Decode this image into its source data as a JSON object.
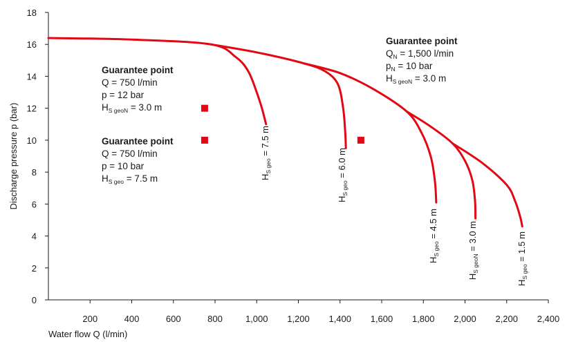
{
  "chart_data": {
    "type": "line",
    "xlabel": "Water flow Q (l/min)",
    "ylabel": "Discharge pressure p (bar)",
    "xlim": [
      0,
      2400
    ],
    "ylim": [
      0,
      18
    ],
    "x_ticks": [
      200,
      400,
      600,
      800,
      1000,
      1200,
      1400,
      1600,
      1800,
      2000,
      2200,
      2400
    ],
    "x_tick_labels": [
      "200",
      "400",
      "600",
      "800",
      "1,000",
      "1,200",
      "1,400",
      "1,600",
      "1,800",
      "2,000",
      "2,200",
      "2,400"
    ],
    "y_ticks": [
      0,
      2,
      4,
      6,
      8,
      10,
      12,
      14,
      16,
      18
    ],
    "y_tick_labels": [
      "0",
      "2",
      "4",
      "6",
      "8",
      "10",
      "12",
      "14",
      "16",
      "18"
    ],
    "grid": false,
    "line_color": "#e30613",
    "marker_color": "#e30613",
    "series": [
      {
        "label_main": "H",
        "label_sub": "S geo",
        "label_tail": " = 7.5 m",
        "points": [
          [
            0,
            16.4
          ],
          [
            400,
            16.3
          ],
          [
            780,
            16.0
          ],
          [
            900,
            15.2
          ],
          [
            960,
            14.3
          ],
          [
            1000,
            13.0
          ],
          [
            1025,
            12.0
          ],
          [
            1045,
            11.0
          ]
        ]
      },
      {
        "label_main": "H",
        "label_sub": "S geo",
        "label_tail": " = 6.0 m",
        "points": [
          [
            780,
            16.0
          ],
          [
            1000,
            15.5
          ],
          [
            1230,
            14.8
          ],
          [
            1330,
            14.3
          ],
          [
            1390,
            13.5
          ],
          [
            1415,
            12.0
          ],
          [
            1425,
            10.5
          ],
          [
            1428,
            9.5
          ]
        ]
      },
      {
        "label_main": "H",
        "label_sub": "S geo",
        "label_tail": " = 4.5 m",
        "points": [
          [
            1230,
            14.8
          ],
          [
            1400,
            14.2
          ],
          [
            1560,
            13.2
          ],
          [
            1720,
            11.8
          ],
          [
            1790,
            10.5
          ],
          [
            1835,
            9.0
          ],
          [
            1855,
            7.5
          ],
          [
            1862,
            6.1
          ]
        ]
      },
      {
        "label_main": "H",
        "label_sub": "S geoN",
        "label_tail": " = 3.0 m",
        "points": [
          [
            1720,
            11.8
          ],
          [
            1830,
            10.9
          ],
          [
            1940,
            9.8
          ],
          [
            2000,
            8.7
          ],
          [
            2035,
            7.5
          ],
          [
            2048,
            6.2
          ],
          [
            2050,
            5.1
          ]
        ]
      },
      {
        "label_main": "H",
        "label_sub": "S geo",
        "label_tail": " = 1.5 m",
        "points": [
          [
            1940,
            9.8
          ],
          [
            2080,
            8.6
          ],
          [
            2200,
            7.2
          ],
          [
            2240,
            6.2
          ],
          [
            2265,
            5.2
          ],
          [
            2275,
            4.6
          ]
        ]
      }
    ],
    "guarantee_points": [
      {
        "x": 750,
        "y": 12
      },
      {
        "x": 750,
        "y": 10
      },
      {
        "x": 1500,
        "y": 10
      }
    ],
    "annotations": [
      {
        "title": "Guarantee point",
        "line1": "Q = 750 l/min",
        "line2": "p = 12 bar",
        "line3_main": "H",
        "line3_sub": "S geoN",
        "line3_tail": " = 3.0 m"
      },
      {
        "title": "Guarantee point",
        "line1": "Q = 750 l/min",
        "line2": "p = 10 bar",
        "line3_main": "H",
        "line3_sub": "S geo",
        "line3_tail": " = 7.5 m"
      },
      {
        "title": "Guarantee point",
        "line1_main": "Q",
        "line1_sub": "N",
        "line1_tail": " = 1,500 l/min",
        "line2_main": "p",
        "line2_sub": "N",
        "line2_tail": " = 10 bar",
        "line3_main": "H",
        "line3_sub": "S geoN",
        "line3_tail": " = 3.0 m"
      }
    ]
  }
}
